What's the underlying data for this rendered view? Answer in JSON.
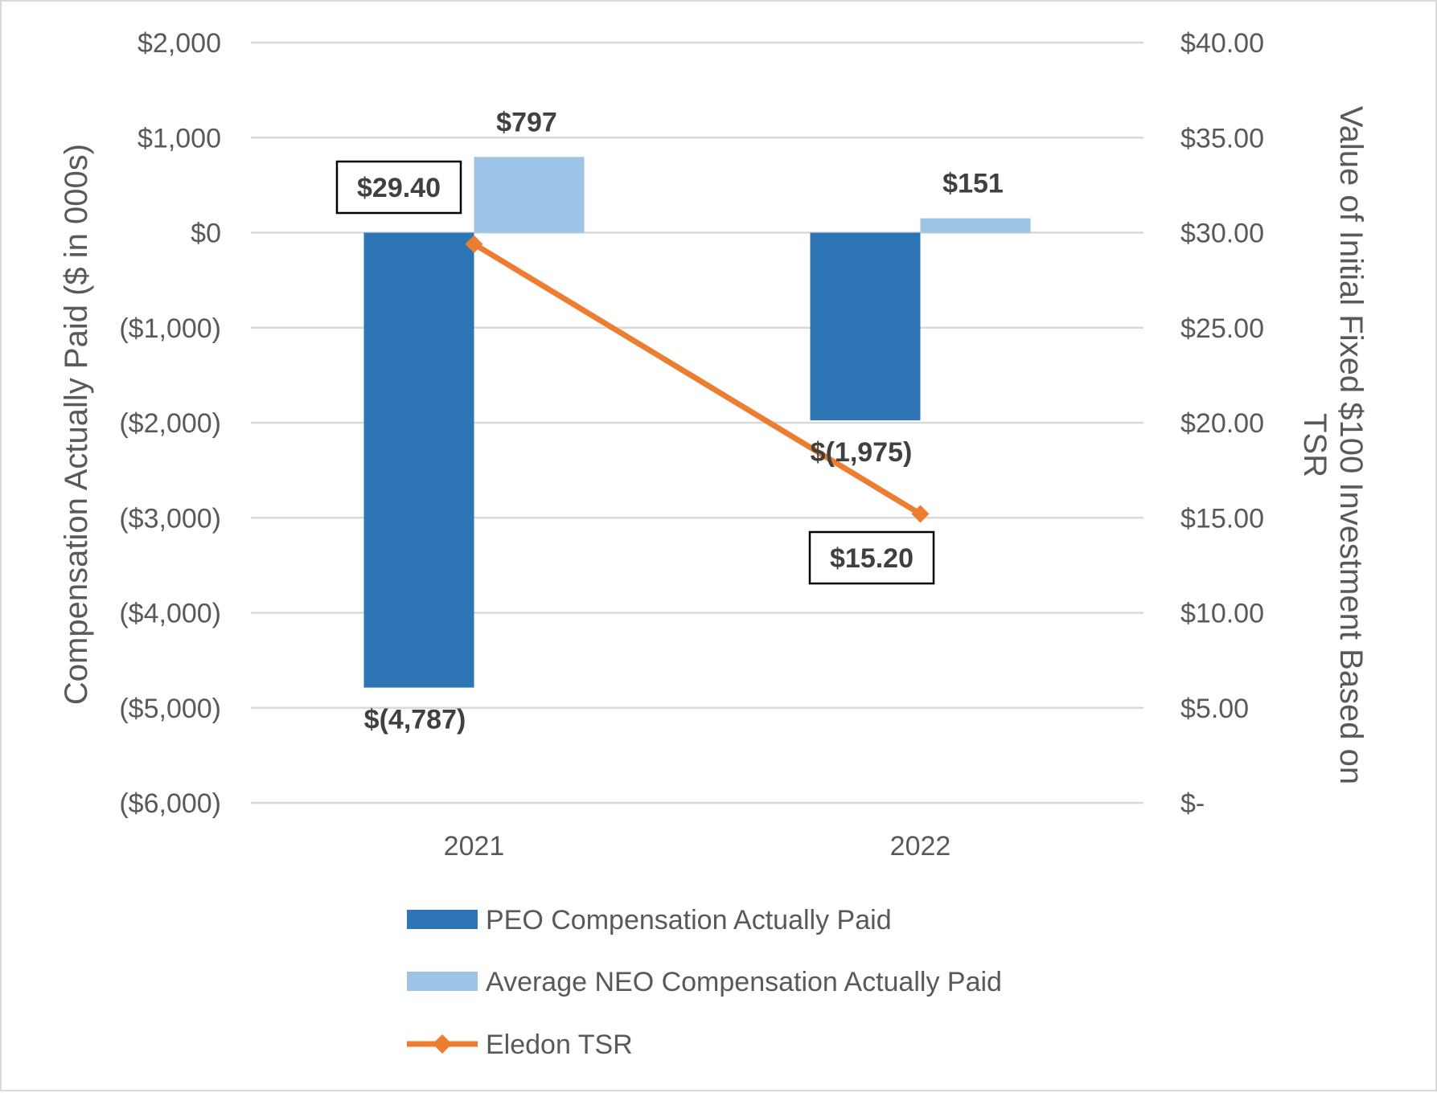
{
  "chart_data": {
    "type": "bar",
    "categories": [
      "2021",
      "2022"
    ],
    "series": [
      {
        "name": "PEO Compensation Actually Paid",
        "kind": "bar",
        "axis": "left",
        "color": "#2e75b6",
        "values": [
          -4787,
          -1975
        ],
        "labels": [
          "$(4,787)",
          "$(1,975)"
        ]
      },
      {
        "name": "Average NEO Compensation Actually Paid",
        "kind": "bar",
        "axis": "left",
        "color": "#9dc3e6",
        "values": [
          797,
          151
        ],
        "labels": [
          "$797",
          "$151"
        ]
      },
      {
        "name": "Eledon TSR",
        "kind": "line",
        "axis": "right",
        "color": "#ed7d31",
        "marker": "diamond",
        "values": [
          29.4,
          15.2
        ],
        "labels": [
          "$29.40",
          "$15.20"
        ]
      }
    ],
    "left_axis": {
      "title": "Compensation Actually Paid ($ in 000s)",
      "ylim": [
        -6000,
        2000
      ],
      "ticks": [
        2000,
        1000,
        0,
        -1000,
        -2000,
        -3000,
        -4000,
        -5000,
        -6000
      ],
      "tick_labels": [
        "$2,000",
        "$1,000",
        "$0",
        "($1,000)",
        "($2,000)",
        "($3,000)",
        "($4,000)",
        "($5,000)",
        "($6,000)"
      ]
    },
    "right_axis": {
      "title_lines": [
        "Value of Initial Fixed $100 Investment Based on",
        "TSR"
      ],
      "ylim": [
        0,
        40
      ],
      "ticks": [
        40,
        35,
        30,
        25,
        20,
        15,
        10,
        5,
        0
      ],
      "tick_labels": [
        "$40.00",
        "$35.00",
        "$30.00",
        "$25.00",
        "$20.00",
        "$15.00",
        "$10.00",
        "$5.00",
        "$-"
      ]
    },
    "grid": true,
    "legend_position": "bottom"
  }
}
